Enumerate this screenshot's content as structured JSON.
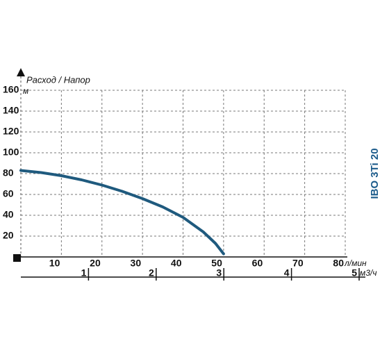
{
  "chart_data": {
    "type": "line",
    "title": "Расход / Напор",
    "annotation": "IBO 3Ti 20",
    "y_unit": "м",
    "x_unit": "л/мин",
    "x2_unit": "м3/ч",
    "x": [
      0,
      5,
      10,
      15,
      20,
      25,
      30,
      35,
      40,
      45,
      48,
      50
    ],
    "series": [
      {
        "color": "#1f5a7e",
        "values": [
          83,
          81,
          78,
          74,
          69,
          63,
          56,
          48,
          38,
          24,
          13,
          3
        ]
      }
    ],
    "xlim": [
      0,
      80
    ],
    "xticks": [
      10,
      20,
      30,
      40,
      50,
      60,
      70,
      80
    ],
    "ylim": [
      0,
      160
    ],
    "yticks": [
      20,
      40,
      60,
      80,
      100,
      120,
      140,
      160
    ],
    "x2lim": [
      0,
      5
    ],
    "x2ticks": [
      1,
      2,
      3,
      4,
      5
    ],
    "grid": true,
    "annotation_color": "#1a5a8a"
  }
}
